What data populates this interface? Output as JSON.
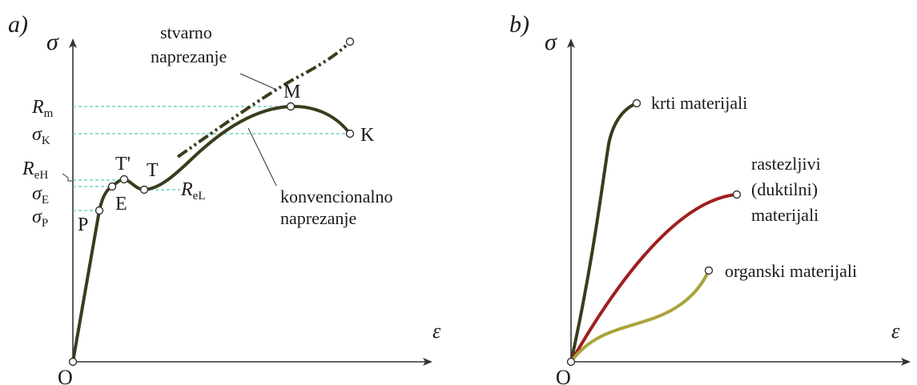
{
  "panel_a": {
    "tag": "a)",
    "y_axis": "σ",
    "x_axis": "ε",
    "origin": "O",
    "true_stress_label": [
      "stvarno",
      "naprezanje"
    ],
    "conventional_label": [
      "konvencionalno",
      "naprezanje"
    ],
    "points": {
      "P": "P",
      "E": "E",
      "Tp": "T'",
      "T": "T",
      "M": "M",
      "K": "K"
    },
    "y_labels": {
      "Rm": {
        "main": "R",
        "sub": "m"
      },
      "sK": {
        "main": "σ",
        "sub": "K"
      },
      "ReH": {
        "main": "R",
        "sub": "eH"
      },
      "sE": {
        "main": "σ",
        "sub": "E"
      },
      "sP": {
        "main": "σ",
        "sub": "P"
      }
    },
    "ReL": {
      "main": "R",
      "sub": "eL"
    }
  },
  "panel_b": {
    "tag": "b)",
    "y_axis": "σ",
    "x_axis": "ε",
    "origin": "O",
    "curves": [
      {
        "label": "krti materijali",
        "color": "#3a3d1c"
      },
      {
        "label": [
          "rastezljivi",
          "(duktilni)",
          "materijali"
        ],
        "color": "#a01e1e"
      },
      {
        "label": "organski materijali",
        "color": "#a9a43c"
      }
    ]
  },
  "colors": {
    "curve_dark": "#3a3d1c",
    "guide": "#5cc8b8",
    "axis": "#333333"
  }
}
